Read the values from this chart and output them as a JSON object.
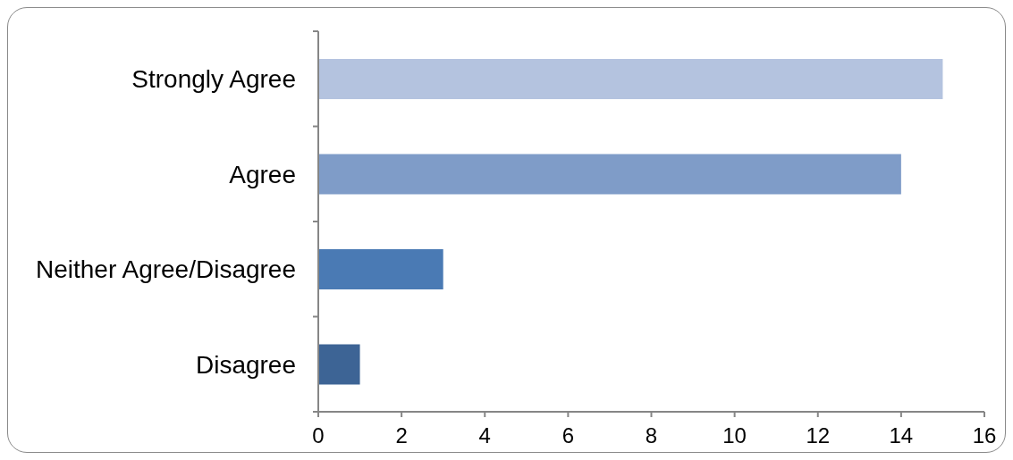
{
  "chart_data": {
    "type": "bar",
    "orientation": "horizontal",
    "categories": [
      "Strongly Agree",
      "Agree",
      "Neither Agree/Disagree",
      "Disagree"
    ],
    "values": [
      15,
      14,
      3,
      1
    ],
    "colors": [
      "#b4c3df",
      "#7f9cc8",
      "#4a7ab4",
      "#3d6495"
    ],
    "xlim": [
      0,
      16
    ],
    "xticks": [
      0,
      2,
      4,
      6,
      8,
      10,
      12,
      14,
      16
    ]
  }
}
